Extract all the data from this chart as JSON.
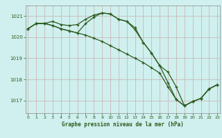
{
  "title": "Graphe pression niveau de la mer (hPa)",
  "bg_color": "#cff0ee",
  "grid_color": "#c8b8b8",
  "line_color": "#2d5a1e",
  "x_ticks": [
    0,
    1,
    2,
    3,
    4,
    5,
    6,
    7,
    8,
    9,
    10,
    11,
    12,
    13,
    14,
    15,
    16,
    17,
    18,
    19,
    20,
    21,
    22,
    23
  ],
  "y_ticks": [
    1017,
    1018,
    1019,
    1020,
    1021
  ],
  "ylim": [
    1016.4,
    1021.5
  ],
  "xlim": [
    -0.3,
    23.3
  ],
  "series1": [
    1020.4,
    1020.65,
    1020.65,
    1020.75,
    1020.6,
    1020.55,
    1020.6,
    1020.85,
    1021.05,
    1021.15,
    1021.1,
    1020.85,
    1020.75,
    1020.35,
    1019.75,
    1019.25,
    1018.65,
    1017.85,
    1017.05,
    1016.75,
    1016.95,
    1017.1,
    1017.55,
    1017.75
  ],
  "series2": [
    1020.4,
    1020.65,
    1020.65,
    1020.55,
    1020.4,
    1020.3,
    1020.2,
    1020.1,
    1019.95,
    1019.8,
    1019.6,
    1019.4,
    1019.2,
    1019.0,
    1018.8,
    1018.55,
    1018.3,
    1017.65,
    1017.05,
    1016.75,
    1016.95,
    1017.1,
    1017.55,
    1017.75
  ],
  "series3": [
    1020.4,
    1020.65,
    1020.65,
    1020.55,
    1020.4,
    1020.3,
    1020.2,
    1020.65,
    1020.95,
    1021.15,
    1021.1,
    1020.85,
    1020.75,
    1020.45,
    1019.75,
    1019.25,
    1018.65,
    1018.35,
    1017.65,
    1016.75,
    1016.95,
    1017.1,
    1017.55,
    1017.75
  ]
}
